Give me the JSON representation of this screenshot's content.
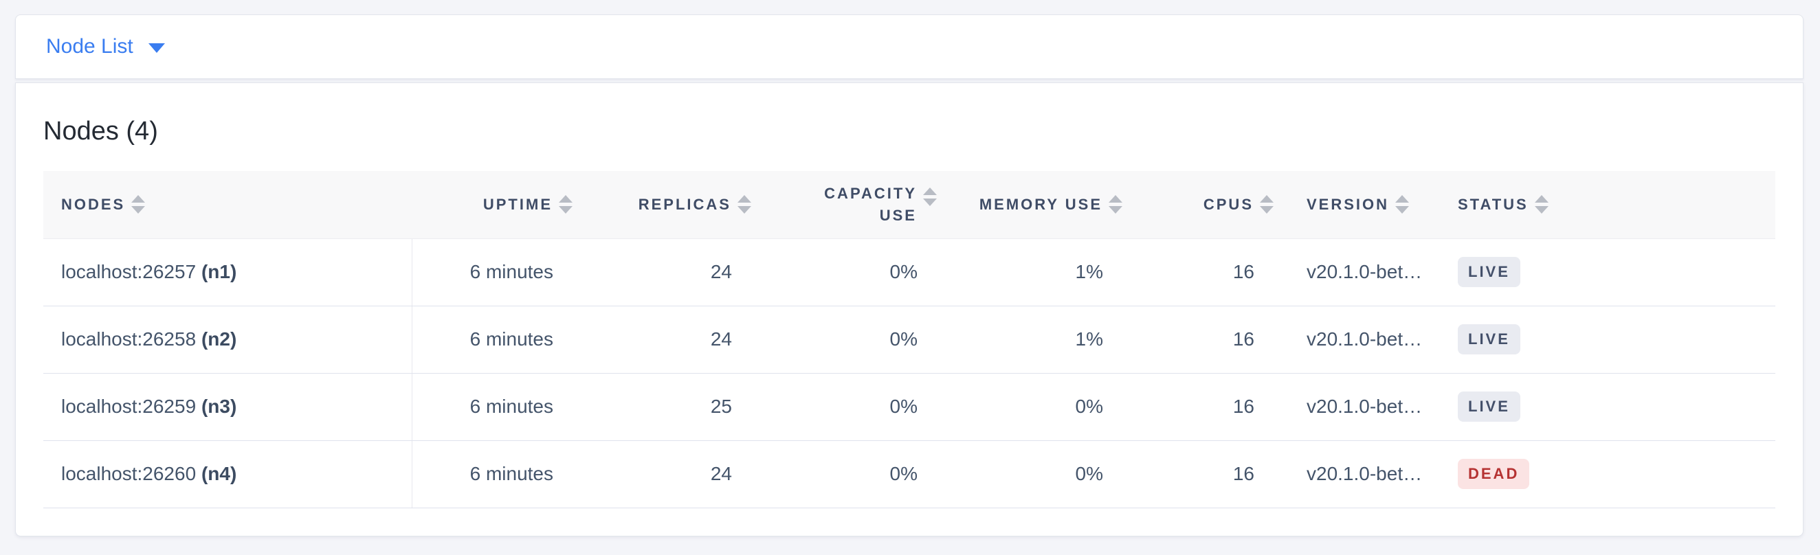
{
  "topbar": {
    "dropdown_label": "Node List"
  },
  "main": {
    "title": "Nodes (4)",
    "table": {
      "columns": [
        "NODES",
        "UPTIME",
        "REPLICAS",
        "CAPACITY USE",
        "MEMORY USE",
        "CPUS",
        "VERSION",
        "STATUS"
      ],
      "rows": [
        {
          "address": "localhost:26257",
          "node_id": "(n1)",
          "uptime": "6 minutes",
          "replicas": "24",
          "capacity_use": "0%",
          "memory_use": "1%",
          "cpus": "16",
          "version": "v20.1.0-bet…",
          "status": "LIVE"
        },
        {
          "address": "localhost:26258",
          "node_id": "(n2)",
          "uptime": "6 minutes",
          "replicas": "24",
          "capacity_use": "0%",
          "memory_use": "1%",
          "cpus": "16",
          "version": "v20.1.0-bet…",
          "status": "LIVE"
        },
        {
          "address": "localhost:26259",
          "node_id": "(n3)",
          "uptime": "6 minutes",
          "replicas": "25",
          "capacity_use": "0%",
          "memory_use": "0%",
          "cpus": "16",
          "version": "v20.1.0-bet…",
          "status": "LIVE"
        },
        {
          "address": "localhost:26260",
          "node_id": "(n4)",
          "uptime": "6 minutes",
          "replicas": "24",
          "capacity_use": "0%",
          "memory_use": "0%",
          "cpus": "16",
          "version": "v20.1.0-bet…",
          "status": "DEAD"
        }
      ]
    }
  },
  "colors": {
    "accent_blue": "#3a7df0",
    "live_badge_bg": "#e9ebf1",
    "live_badge_text": "#44506a",
    "dead_badge_bg": "#fbe3e3",
    "dead_badge_text": "#b53232"
  }
}
